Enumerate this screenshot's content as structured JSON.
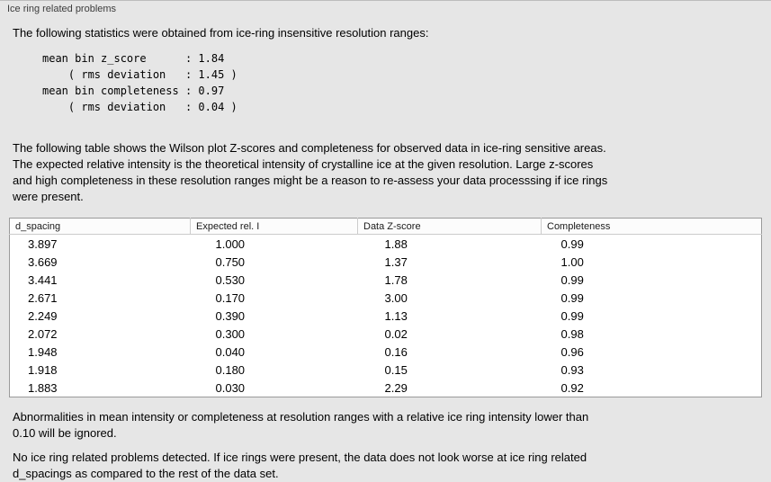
{
  "panel": {
    "title": "Ice ring related problems"
  },
  "intro": "The following statistics were obtained from ice-ring insensitive resolution ranges:",
  "stats": {
    "block": "mean bin z_score      : 1.84\n    ( rms deviation   : 1.45 )\nmean bin completeness : 0.97\n    ( rms deviation   : 0.04 )"
  },
  "description": {
    "lines": [
      "The following table shows the Wilson plot Z-scores and completeness for observed data in ice-ring sensitive areas.",
      "The expected relative intensity is the theoretical intensity of crystalline ice at the given resolution. Large z-scores",
      "and high completeness in these resolution ranges might be a reason to re-assess your data processsing if ice rings",
      "were present."
    ]
  },
  "table": {
    "headers": [
      "d_spacing",
      "Expected rel. I",
      "Data Z-score",
      "Completeness"
    ],
    "rows": [
      [
        "3.897",
        "1.000",
        "1.88",
        "0.99"
      ],
      [
        "3.669",
        "0.750",
        "1.37",
        "1.00"
      ],
      [
        "3.441",
        "0.530",
        "1.78",
        "0.99"
      ],
      [
        "2.671",
        "0.170",
        "3.00",
        "0.99"
      ],
      [
        "2.249",
        "0.390",
        "1.13",
        "0.99"
      ],
      [
        "2.072",
        "0.300",
        "0.02",
        "0.98"
      ],
      [
        "1.948",
        "0.040",
        "0.16",
        "0.96"
      ],
      [
        "1.918",
        "0.180",
        "0.15",
        "0.93"
      ],
      [
        "1.883",
        "0.030",
        "2.29",
        "0.92"
      ]
    ]
  },
  "note_ignore": {
    "lines": [
      "Abnormalities in mean intensity or completeness at resolution ranges with a relative ice ring intensity lower than",
      "0.10 will be ignored."
    ]
  },
  "conclusion": {
    "lines": [
      "No ice ring related problems detected. If ice rings were present, the data does not look worse at ice ring related",
      "d_spacings as compared to the rest of the data set."
    ]
  }
}
